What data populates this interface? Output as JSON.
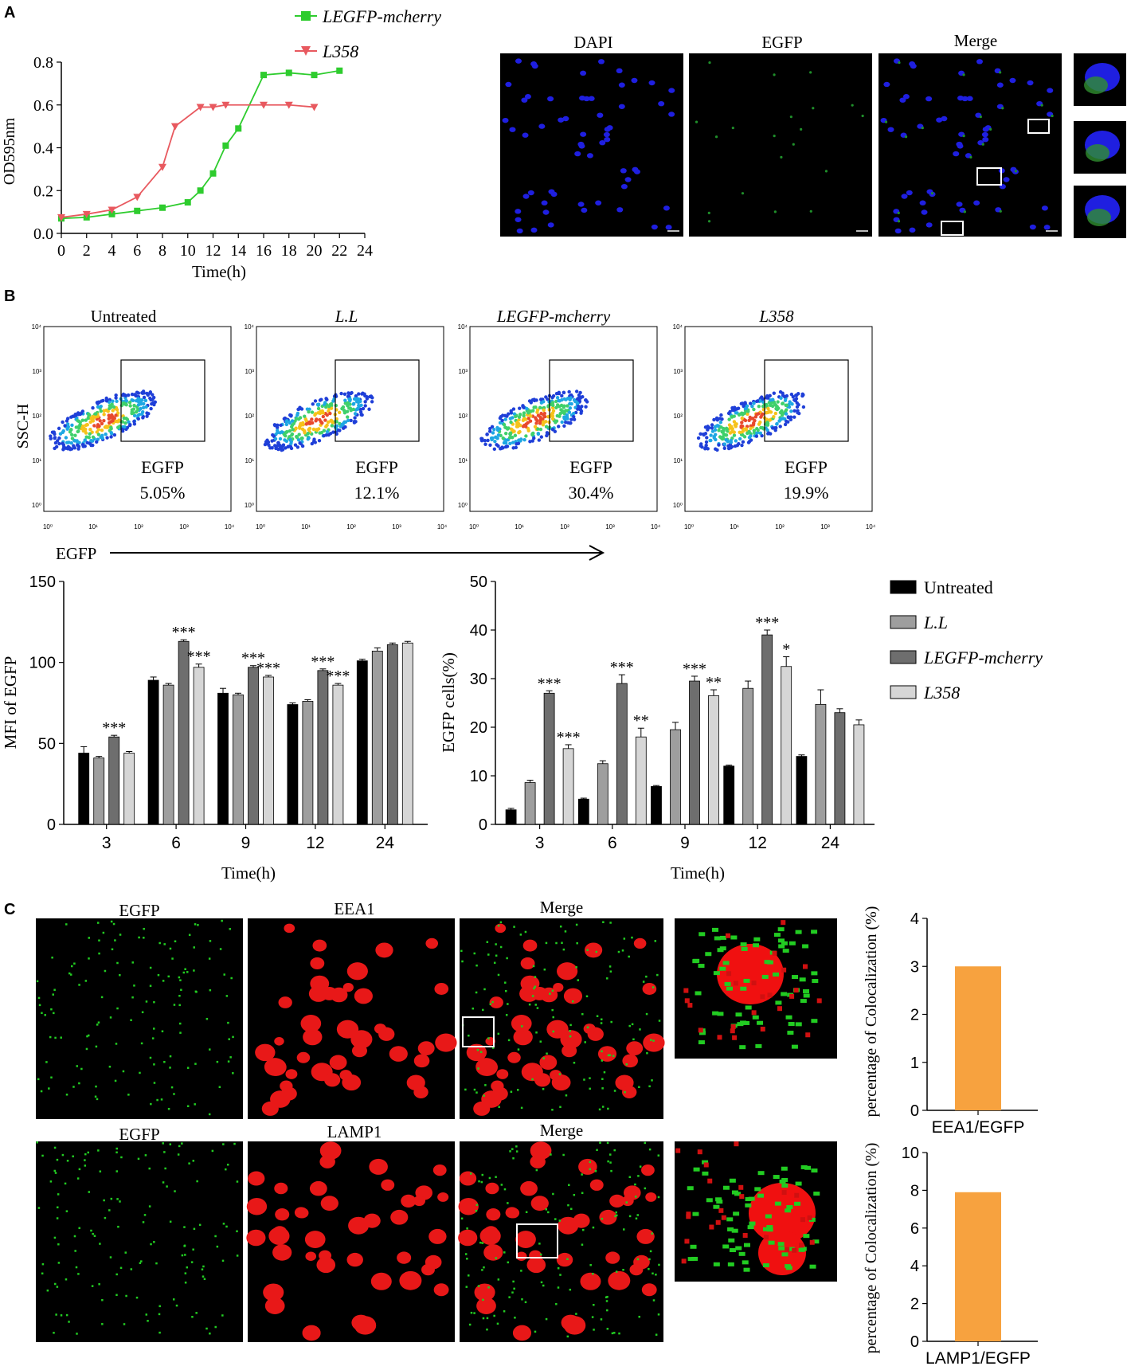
{
  "panel_labels": {
    "a": "A",
    "b": "B",
    "c": "C"
  },
  "panel_a": {
    "legend": [
      "LEGFP-mcherry",
      "L358"
    ],
    "micro_titles": [
      "DAPI",
      "EGFP",
      "Merge"
    ],
    "colors": {
      "green_series": "#2ecc2e",
      "red_series": "#e8595f",
      "dapi": "#1a1aff",
      "egfp": "#2ca02c"
    }
  },
  "panel_b": {
    "flow_titles": [
      "Untreated",
      "L.L",
      "LEGFP-mcherry",
      "L358"
    ],
    "flow_gate_label": "EGFP",
    "flow_percents": [
      "5.05%",
      "12.1%",
      "30.4%",
      "19.9%"
    ],
    "flow_ylabel": "SSC-H",
    "flow_xlabel": "EGFP",
    "flow_ticks": [
      "10⁰",
      "10¹",
      "10²",
      "10³",
      "10⁴"
    ],
    "legend": [
      "Untreated",
      "L.L",
      "LEGFP-mcherry",
      "L358"
    ],
    "bar_colors": [
      "#000000",
      "#9e9e9e",
      "#6e6e6e",
      "#d6d6d6"
    ]
  },
  "panel_c": {
    "row1_titles": [
      "EGFP",
      "EEA1",
      "Merge"
    ],
    "row2_titles": [
      "EGFP",
      "LAMP1",
      "Merge"
    ],
    "bar_color": "#f7a23f"
  },
  "chart_data": [
    {
      "type": "line",
      "xlabel": "Time(h)",
      "ylabel": "OD595nm",
      "xlim": [
        0,
        24
      ],
      "ylim": [
        0,
        0.8
      ],
      "xticks": [
        0,
        2,
        4,
        6,
        8,
        10,
        12,
        14,
        16,
        18,
        20,
        22,
        24
      ],
      "yticks": [
        "0.0",
        "0.2",
        "0.4",
        "0.6",
        "0.8"
      ],
      "series": [
        {
          "name": "LEGFP-mcherry",
          "color": "#2ecc2e",
          "marker": "square",
          "x": [
            0,
            2,
            4,
            6,
            8,
            10,
            11,
            12,
            13,
            14,
            16,
            18,
            20,
            22
          ],
          "y": [
            0.07,
            0.075,
            0.09,
            0.105,
            0.12,
            0.145,
            0.2,
            0.28,
            0.41,
            0.49,
            0.74,
            0.75,
            0.74,
            0.76
          ]
        },
        {
          "name": "L358",
          "color": "#e8595f",
          "marker": "triangle-down",
          "x": [
            0,
            2,
            4,
            6,
            8,
            9,
            11,
            12,
            13,
            16,
            18,
            20
          ],
          "y": [
            0.075,
            0.09,
            0.11,
            0.17,
            0.31,
            0.5,
            0.59,
            0.59,
            0.6,
            0.6,
            0.6,
            0.59
          ]
        }
      ]
    },
    {
      "type": "bar",
      "xlabel": "Time(h)",
      "ylabel": "MFI of EGFP",
      "ylim": [
        0,
        150
      ],
      "yticks": [
        0,
        50,
        100,
        150
      ],
      "categories": [
        "3",
        "6",
        "9",
        "12",
        "24"
      ],
      "series": [
        {
          "name": "Untreated",
          "values": [
            44,
            89,
            81,
            74,
            101
          ]
        },
        {
          "name": "L.L",
          "values": [
            41,
            86,
            80,
            76,
            107
          ]
        },
        {
          "name": "LEGFP-mcherry",
          "values": [
            54,
            113,
            97,
            95,
            111
          ]
        },
        {
          "name": "L358",
          "values": [
            44,
            97,
            91,
            86,
            112
          ]
        }
      ],
      "errors": [
        [
          4,
          2,
          3,
          1,
          1
        ],
        [
          1,
          1,
          1,
          1,
          2
        ],
        [
          1,
          1,
          1,
          1,
          1
        ],
        [
          1,
          2,
          1,
          1,
          1
        ]
      ],
      "annotations": [
        {
          "category": "3",
          "series": "LEGFP-mcherry",
          "text": "***"
        },
        {
          "category": "6",
          "series": "LEGFP-mcherry",
          "text": "***"
        },
        {
          "category": "6",
          "series": "L358",
          "text": "***"
        },
        {
          "category": "9",
          "series": "LEGFP-mcherry",
          "text": "***"
        },
        {
          "category": "9",
          "series": "L358",
          "text": "***"
        },
        {
          "category": "12",
          "series": "LEGFP-mcherry",
          "text": "***"
        },
        {
          "category": "12",
          "series": "L358",
          "text": "***"
        }
      ]
    },
    {
      "type": "bar",
      "xlabel": "Time(h)",
      "ylabel": "EGFP cells(%)",
      "ylim": [
        0,
        50
      ],
      "yticks": [
        0,
        10,
        20,
        30,
        40,
        50
      ],
      "categories": [
        "3",
        "6",
        "9",
        "12",
        "24"
      ],
      "series": [
        {
          "name": "Untreated",
          "values": [
            3,
            5.2,
            7.8,
            12,
            14
          ]
        },
        {
          "name": "L.L",
          "values": [
            8.6,
            12.5,
            19.5,
            28,
            24.7
          ]
        },
        {
          "name": "LEGFP-mcherry",
          "values": [
            27,
            29,
            29.5,
            39,
            23
          ]
        },
        {
          "name": "L358",
          "values": [
            15.6,
            18,
            26.5,
            32.5,
            20.5
          ]
        }
      ],
      "errors": [
        [
          0.3,
          0.2,
          0.2,
          0.2,
          0.3
        ],
        [
          0.5,
          0.6,
          1.5,
          1.5,
          3
        ],
        [
          0.5,
          1.8,
          1,
          1,
          0.8
        ],
        [
          0.8,
          1.8,
          1.2,
          2,
          1
        ]
      ],
      "annotations": [
        {
          "category": "3",
          "series": "LEGFP-mcherry",
          "text": "***"
        },
        {
          "category": "3",
          "series": "L358",
          "text": "***"
        },
        {
          "category": "6",
          "series": "LEGFP-mcherry",
          "text": "***"
        },
        {
          "category": "6",
          "series": "L358",
          "text": "**"
        },
        {
          "category": "9",
          "series": "LEGFP-mcherry",
          "text": "***"
        },
        {
          "category": "9",
          "series": "L358",
          "text": "**"
        },
        {
          "category": "12",
          "series": "LEGFP-mcherry",
          "text": "***"
        },
        {
          "category": "12",
          "series": "L358",
          "text": "*"
        }
      ]
    },
    {
      "type": "bar",
      "ylabel": "percentage of Colocalization (%)",
      "ylim": [
        0,
        4
      ],
      "yticks": [
        0,
        1,
        2,
        3,
        4
      ],
      "categories": [
        "EEA1/EGFP"
      ],
      "values": [
        3.0
      ]
    },
    {
      "type": "bar",
      "ylabel": "percentage of Colocalization (%)",
      "ylim": [
        0,
        10
      ],
      "yticks": [
        0,
        2,
        4,
        6,
        8,
        10
      ],
      "categories": [
        "LAMP1/EGFP"
      ],
      "values": [
        7.9
      ]
    }
  ]
}
